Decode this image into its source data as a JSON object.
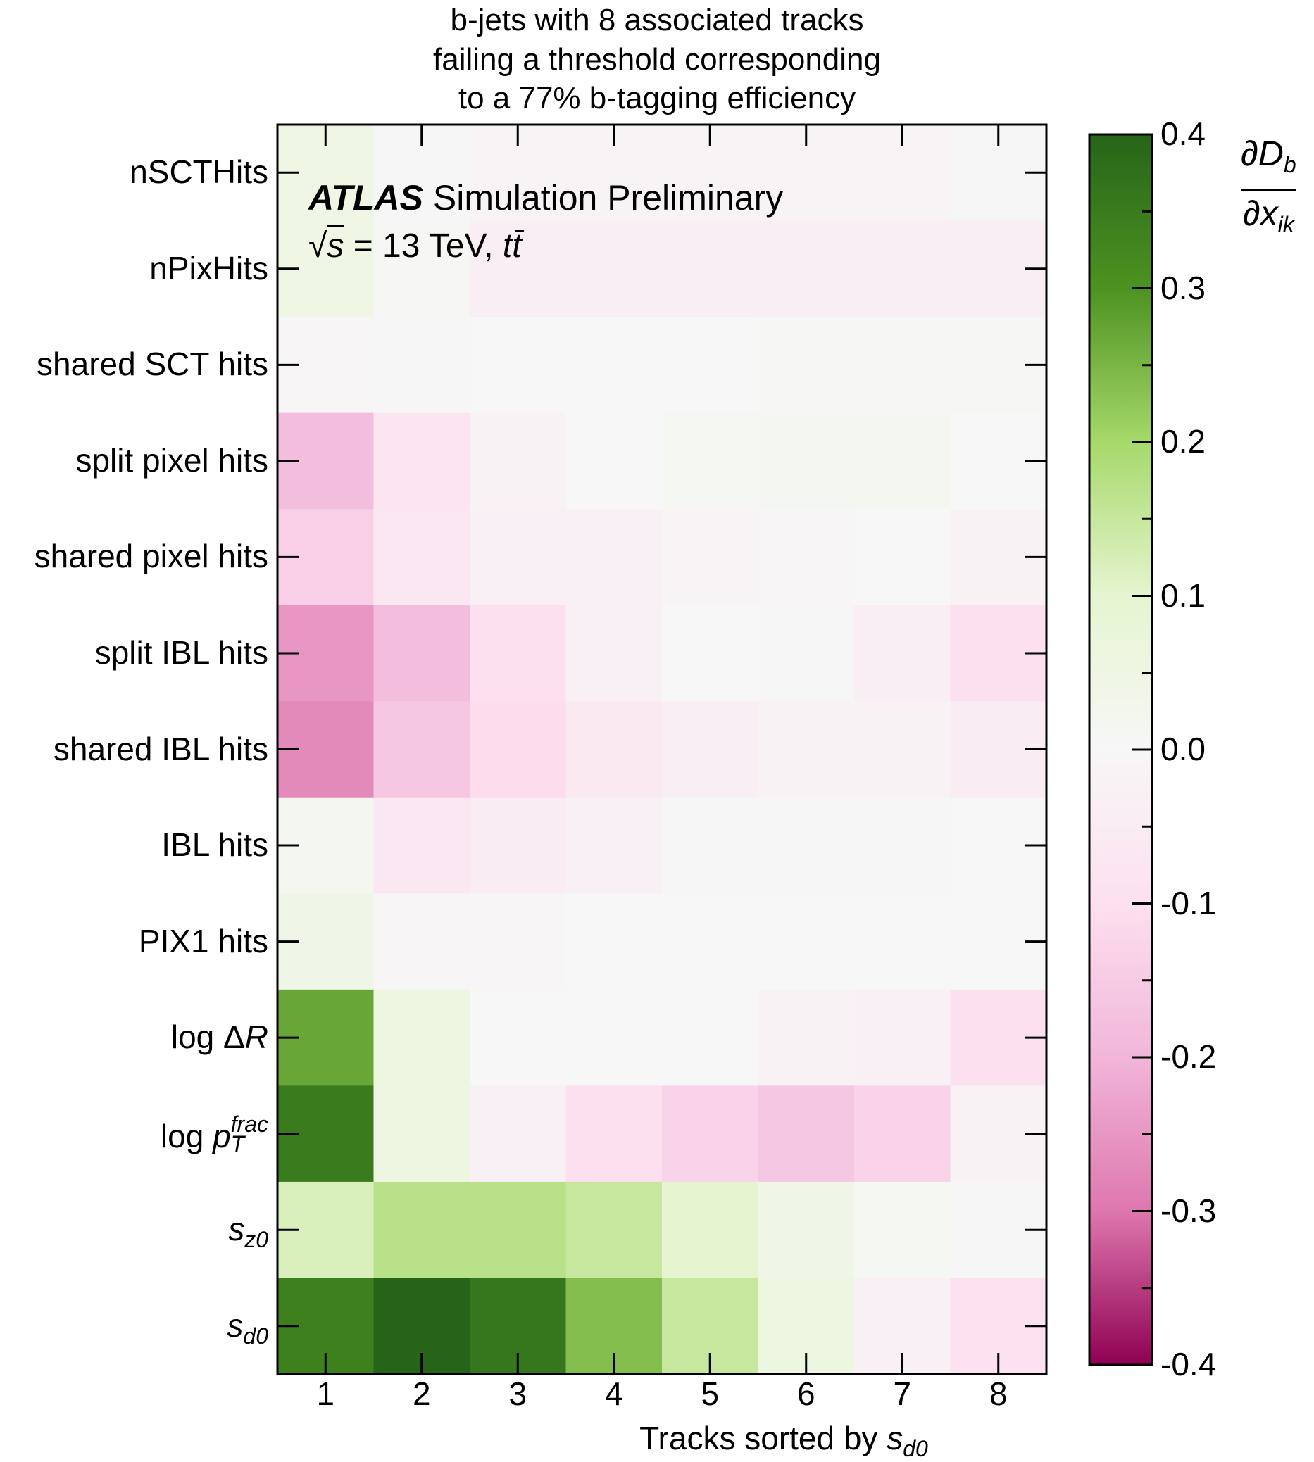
{
  "title": [
    "b-jets with 8 associated tracks",
    "failing a threshold corresponding",
    "to a 77% b-tagging efficiency"
  ],
  "experiment_label": "ATLAS",
  "experiment_sub": "Simulation Preliminary",
  "energy_label": "= 13 TeV,",
  "colorbar_label": {
    "numerator": "∂D",
    "numerator_sub": "b",
    "denominator": "∂x",
    "denominator_sub": "ik"
  },
  "colors": {
    "positive": "#276419",
    "zero": "#f7f7f7",
    "negative": "#8e0152"
  },
  "chart_data": {
    "type": "heatmap",
    "title": "b-jets with 8 associated tracks failing a threshold corresponding to a 77% b-tagging efficiency",
    "xlabel": "Tracks sorted by s_d0",
    "x": [
      1,
      2,
      3,
      4,
      5,
      6,
      7,
      8
    ],
    "y": [
      "nSCTHits",
      "nPixHits",
      "shared SCT hits",
      "split pixel hits",
      "shared pixel hits",
      "split IBL hits",
      "shared IBL hits",
      "IBL hits",
      "PIX1 hits",
      "log ΔR",
      "log p_T^frac",
      "s_z0",
      "s_d0"
    ],
    "colorbar": {
      "label": "∂D_b/∂x_ik",
      "range": [
        -0.4,
        0.4
      ],
      "ticks": [
        "0.4",
        "0.3",
        "0.2",
        "0.1",
        "0.0",
        "-0.1",
        "-0.2",
        "-0.3",
        "-0.4"
      ]
    },
    "values": [
      [
        0.05,
        -0.005,
        -0.015,
        -0.015,
        -0.015,
        -0.015,
        -0.015,
        -0.005
      ],
      [
        0.05,
        0.005,
        -0.04,
        -0.04,
        -0.04,
        -0.04,
        -0.04,
        -0.04
      ],
      [
        -0.01,
        -0.005,
        0.0,
        0.0,
        0.003,
        0.005,
        0.005,
        0.005
      ],
      [
        -0.18,
        -0.08,
        -0.02,
        0.0,
        0.01,
        0.015,
        0.02,
        0.0
      ],
      [
        -0.14,
        -0.07,
        -0.03,
        -0.03,
        -0.015,
        -0.01,
        0.0,
        -0.02
      ],
      [
        -0.25,
        -0.18,
        -0.1,
        -0.03,
        0.0,
        -0.005,
        -0.04,
        -0.1
      ],
      [
        -0.27,
        -0.16,
        -0.11,
        -0.06,
        -0.04,
        -0.02,
        -0.02,
        -0.05
      ],
      [
        0.02,
        -0.07,
        -0.05,
        -0.03,
        -0.005,
        -0.005,
        -0.005,
        0.003
      ],
      [
        0.04,
        -0.01,
        -0.01,
        0.0,
        0.0,
        0.0,
        0.0,
        0.0
      ],
      [
        0.27,
        0.06,
        0.003,
        0.003,
        0.003,
        -0.02,
        -0.03,
        -0.1
      ],
      [
        0.35,
        0.06,
        -0.03,
        -0.1,
        -0.13,
        -0.16,
        -0.13,
        -0.02
      ],
      [
        0.12,
        0.17,
        0.17,
        0.15,
        0.1,
        0.04,
        0.01,
        -0.005
      ],
      [
        0.34,
        0.41,
        0.36,
        0.24,
        0.15,
        0.06,
        -0.03,
        -0.09
      ]
    ]
  }
}
